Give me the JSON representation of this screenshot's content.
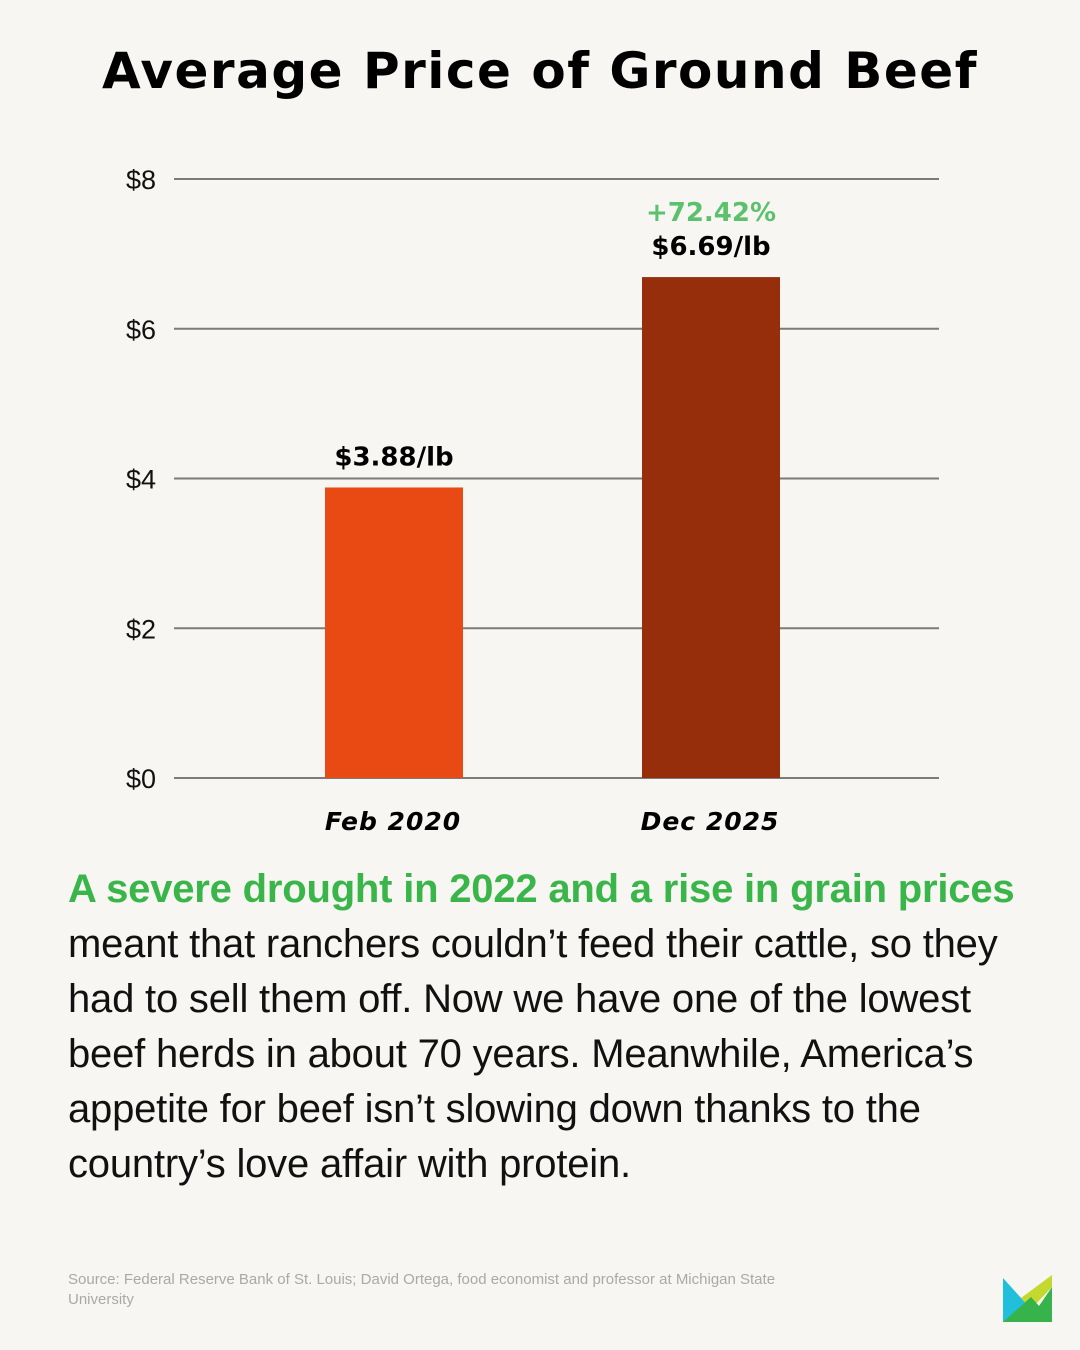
{
  "colors": {
    "background": "#f7f6f2",
    "bar_feb_2020": "#e94a14",
    "bar_dec_2025": "#962e0c",
    "highlight_green": "#39b54a",
    "percent_green": "#5bc16c",
    "gridline": "#7d7b78"
  },
  "chart_data": {
    "type": "bar",
    "title": "Average Price of Ground Beef",
    "xlabel": "",
    "ylabel": "",
    "ylim": [
      0,
      8
    ],
    "yticks": [
      0,
      2,
      4,
      6,
      8
    ],
    "ytick_labels": [
      "$0",
      "$2",
      "$4",
      "$6",
      "$8"
    ],
    "grid": true,
    "categories": [
      "Feb 2020",
      "Dec 2025"
    ],
    "values": [
      3.88,
      6.69
    ],
    "data_labels": [
      "$3.88/lb",
      "$6.69/lb"
    ],
    "annotations": [
      {
        "category": "Dec 2025",
        "text": "+72.42%"
      }
    ]
  },
  "body": {
    "highlight": "A severe drought in 2022 and a rise in grain prices",
    "rest": " meant that ranchers couldn’t feed their cattle, so they had to sell them off. Now we have one of the lowest beef herds in about 70 years. Meanwhile, America’s appetite for beef isn’t slowing down thanks to the country’s love affair with protein."
  },
  "source": "Source: Federal Reserve Bank of St. Louis; David Ortega, food economist and professor at Michigan State University",
  "logo": {
    "icon": "brand-m-logo"
  }
}
